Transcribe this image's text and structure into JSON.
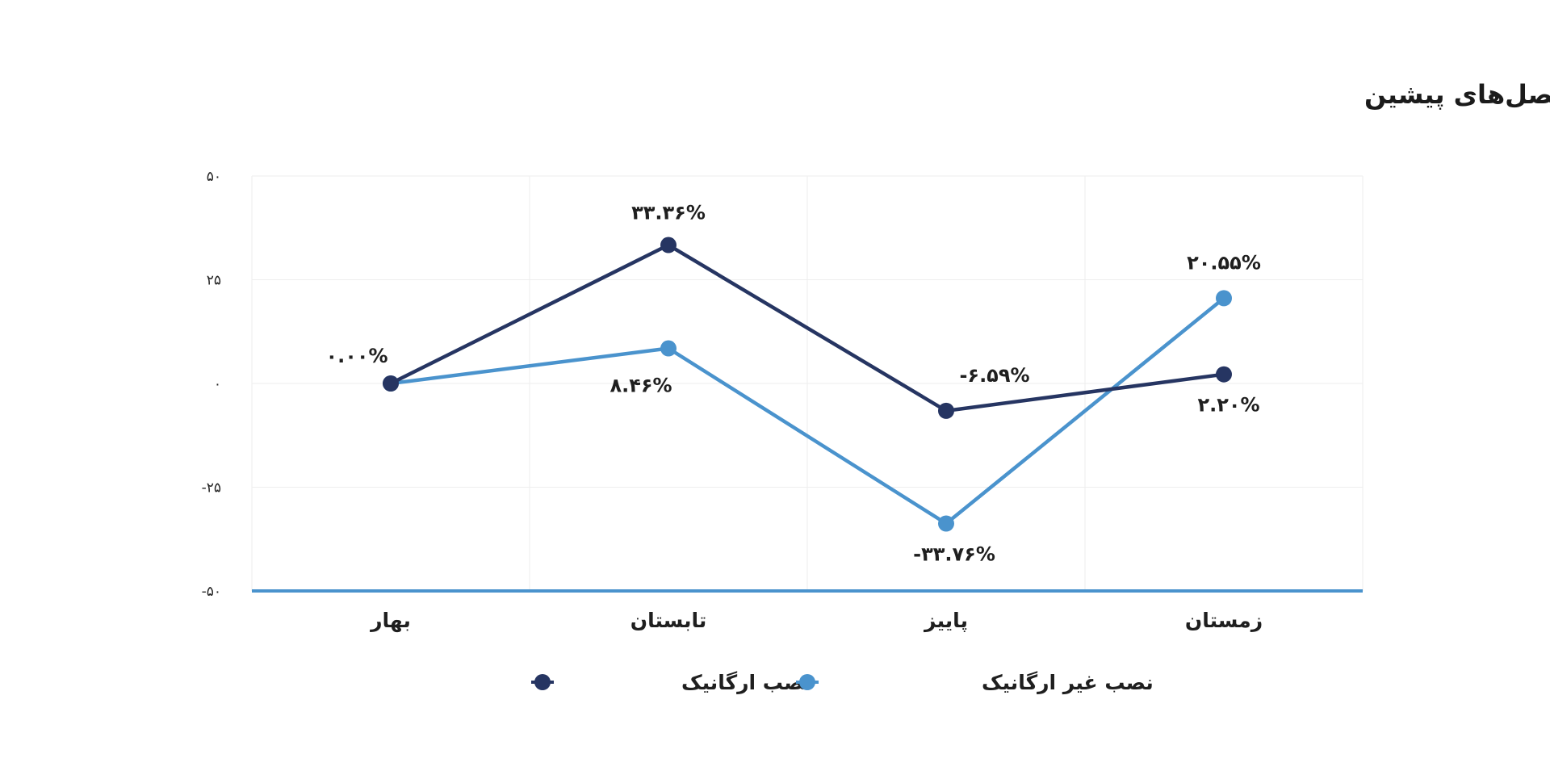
{
  "chart_data": {
    "type": "line",
    "title": "روند تغییرات نصب‌های ارگانیک و غیر ارگانیک نسبت به فصل‌های پیشین",
    "categories": [
      "بهار",
      "تابستان",
      "پاییز",
      "زمستان"
    ],
    "yticks": [
      50,
      25,
      0,
      -25,
      -50
    ],
    "ytick_labels": [
      "۵۰",
      "۲۵",
      "۰",
      "-۲۵",
      "-۵۰"
    ],
    "ylim": [
      -50,
      50
    ],
    "grid": true,
    "legend_position": "bottom",
    "series": [
      {
        "name": "نصب ارگانیک",
        "color": "#263562",
        "values": [
          0.0,
          33.36,
          -6.59,
          2.2
        ],
        "labels": [
          "",
          "۳۳.۳۶%",
          "-۶.۵۹%",
          "۲.۲۰%"
        ]
      },
      {
        "name": "نصب غیر ارگانیک",
        "color": "#4a93cd",
        "values": [
          0.0,
          8.46,
          -33.76,
          20.55
        ],
        "labels": [
          "۰.۰۰%",
          "۸.۴۶%",
          "-۳۳.۷۶%",
          "۲۰.۵۵%"
        ]
      }
    ]
  }
}
